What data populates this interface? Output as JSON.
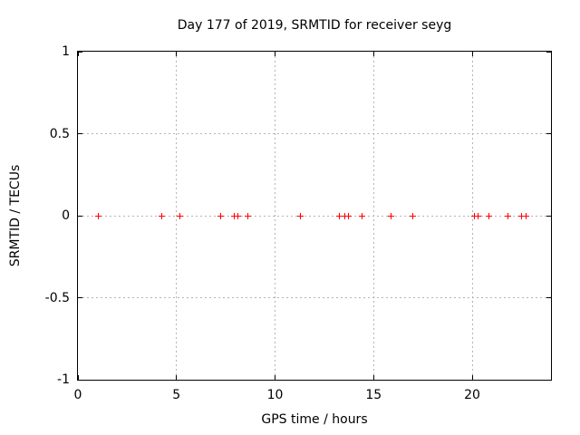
{
  "chart_data": {
    "type": "scatter",
    "title": "Day 177 of 2019, SRMTID for receiver seyg",
    "xlabel": "GPS time / hours",
    "ylabel": "SRMTID / TECUs",
    "xlim": [
      0,
      24
    ],
    "ylim": [
      -1,
      1
    ],
    "xticks": [
      {
        "v": 0,
        "label": "0"
      },
      {
        "v": 5,
        "label": "5"
      },
      {
        "v": 10,
        "label": "10"
      },
      {
        "v": 15,
        "label": "15"
      },
      {
        "v": 20,
        "label": "20"
      }
    ],
    "yticks": [
      {
        "v": 1,
        "label": "1"
      },
      {
        "v": 0.5,
        "label": "0.5"
      },
      {
        "v": 0,
        "label": "0"
      },
      {
        "v": -0.5,
        "label": "-0.5"
      },
      {
        "v": -1,
        "label": "-1"
      }
    ],
    "grid": true,
    "legend": "none",
    "marker": "plus",
    "colors": {
      "marker": "#ff0000",
      "grid": "#b4b4b4",
      "border": "#000000",
      "text": "#000000",
      "background": "#ffffff"
    },
    "series": [
      {
        "name": "SRMTID",
        "x": [
          1.05,
          4.27,
          5.18,
          7.25,
          7.93,
          8.11,
          8.61,
          11.31,
          13.28,
          13.56,
          13.74,
          14.43,
          15.89,
          17.0,
          20.11,
          20.29,
          20.84,
          21.8,
          22.49,
          22.72
        ],
        "y": [
          0,
          0,
          0,
          0,
          0,
          0,
          0,
          0,
          0,
          0,
          0,
          0,
          0,
          0,
          0,
          0,
          0,
          0,
          0,
          0
        ]
      }
    ]
  }
}
